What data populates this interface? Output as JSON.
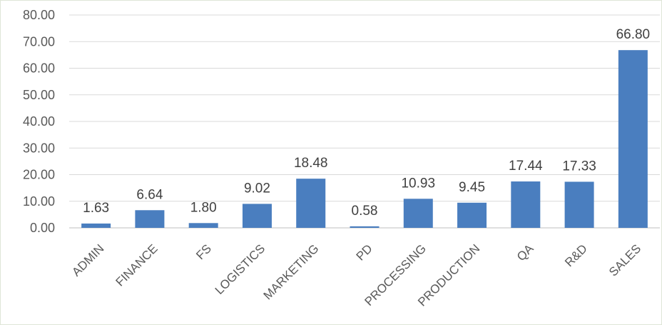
{
  "chart_data": {
    "type": "bar",
    "categories": [
      "ADMIN",
      "FINANCE",
      "FS",
      "LOGISTICS",
      "MARKETING",
      "PD",
      "PROCESSING",
      "PRODUCTION",
      "QA",
      "R&D",
      "SALES"
    ],
    "values": [
      1.63,
      6.64,
      1.8,
      9.02,
      18.48,
      0.58,
      10.93,
      9.45,
      17.44,
      17.33,
      66.8
    ],
    "data_labels": [
      "1.63",
      "6.64",
      "1.80",
      "9.02",
      "18.48",
      "0.58",
      "10.93",
      "9.45",
      "17.44",
      "17.33",
      "66.80"
    ],
    "y_ticks": [
      "0.00",
      "10.00",
      "20.00",
      "30.00",
      "40.00",
      "50.00",
      "60.00",
      "70.00",
      "80.00"
    ],
    "ylim": [
      0,
      80
    ],
    "grid": true,
    "legend": "none",
    "title": "",
    "xlabel": "",
    "ylabel": "",
    "bar_color": "#4a7ebf"
  }
}
